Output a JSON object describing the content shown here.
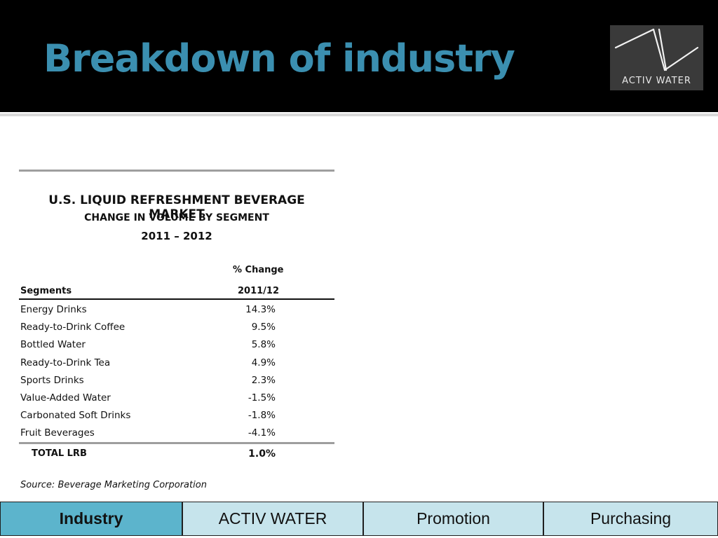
{
  "slide": {
    "title": "Breakdown of industry"
  },
  "logo": {
    "text": "ACTIV WATER",
    "icon": "activ-water-logo-mark"
  },
  "table": {
    "title": "U.S. LIQUID REFRESHMENT BEVERAGE MARKET",
    "subtitle": "CHANGE IN VOLUME BY SEGMENT",
    "years": "2011 – 2012",
    "col_header_top": "% Change",
    "col_header_segments": "Segments",
    "col_header_period": "2011/12",
    "rows": [
      {
        "segment": "Energy Drinks",
        "value": "14.3%"
      },
      {
        "segment": "Ready-to-Drink Coffee",
        "value": "9.5%"
      },
      {
        "segment": "Bottled Water",
        "value": "5.8%"
      },
      {
        "segment": "Ready-to-Drink Tea",
        "value": "4.9%"
      },
      {
        "segment": "Sports Drinks",
        "value": "2.3%"
      },
      {
        "segment": "Value-Added Water",
        "value": "-1.5%"
      },
      {
        "segment": "Carbonated Soft Drinks",
        "value": "-1.8%"
      },
      {
        "segment": "Fruit Beverages",
        "value": "-4.1%"
      }
    ],
    "total_label": "TOTAL LRB",
    "total_value": "1.0%",
    "source": "Source:  Beverage Marketing Corporation"
  },
  "nav": {
    "tabs": [
      {
        "label": "Industry",
        "active": true
      },
      {
        "label": "ACTIV WATER",
        "active": false
      },
      {
        "label": "Promotion",
        "active": false
      },
      {
        "label": "Purchasing",
        "active": false
      }
    ]
  },
  "colors": {
    "title": "#3b8fb0",
    "header_bg": "#000000",
    "tab_active": "#5cb4cc",
    "tab_inactive": "#c6e4ec"
  }
}
